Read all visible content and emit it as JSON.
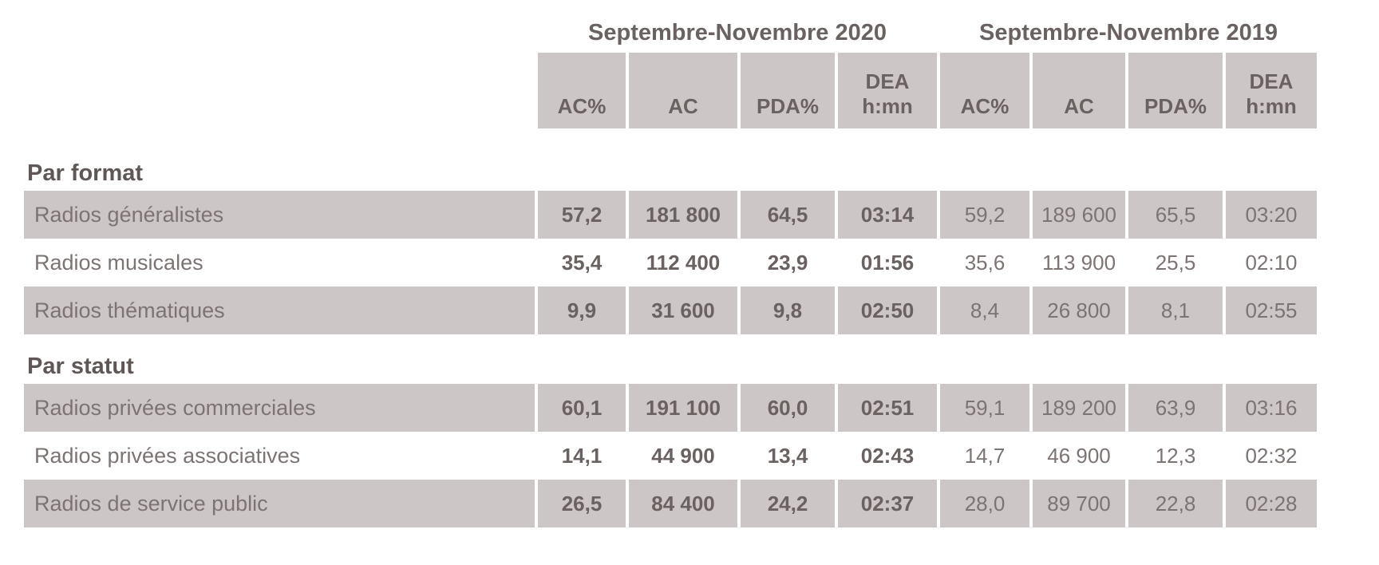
{
  "colors": {
    "row_band": "#cdc6c6",
    "bold_text": "#6a6161",
    "regular_text": "#7c7373",
    "heading_text": "#5f5656",
    "background": "#ffffff"
  },
  "header": {
    "col_labels": [
      "AC%",
      "AC",
      "PDA%"
    ],
    "dea_line1": "DEA",
    "dea_line2": "h:mn"
  },
  "chart_data": {
    "type": "table",
    "column_groups": [
      "Septembre-Novembre 2020",
      "Septembre-Novembre 2019"
    ],
    "columns": [
      "AC%",
      "AC",
      "PDA%",
      "DEA h:mn",
      "AC%",
      "AC",
      "PDA%",
      "DEA h:mn"
    ],
    "sections": [
      {
        "title": "Par format",
        "rows": [
          {
            "label": "Radios généralistes",
            "shaded": true,
            "cells": [
              "57,2",
              "181 800",
              "64,5",
              "03:14",
              "59,2",
              "189 600",
              "65,5",
              "03:20"
            ]
          },
          {
            "label": "Radios musicales",
            "shaded": false,
            "cells": [
              "35,4",
              "112 400",
              "23,9",
              "01:56",
              "35,6",
              "113 900",
              "25,5",
              "02:10"
            ]
          },
          {
            "label": "Radios thématiques",
            "shaded": true,
            "cells": [
              "9,9",
              "31 600",
              "9,8",
              "02:50",
              "8,4",
              "26 800",
              "8,1",
              "02:55"
            ]
          }
        ]
      },
      {
        "title": "Par statut",
        "rows": [
          {
            "label": "Radios privées commerciales",
            "shaded": true,
            "cells": [
              "60,1",
              "191 100",
              "60,0",
              "02:51",
              "59,1",
              "189 200",
              "63,9",
              "03:16"
            ]
          },
          {
            "label": "Radios privées associatives",
            "shaded": false,
            "cells": [
              "14,1",
              "44 900",
              "13,4",
              "02:43",
              "14,7",
              "46 900",
              "12,3",
              "02:32"
            ]
          },
          {
            "label": "Radios de service public",
            "shaded": true,
            "cells": [
              "26,5",
              "84 400",
              "24,2",
              "02:37",
              "28,0",
              "89 700",
              "22,8",
              "02:28"
            ]
          }
        ]
      }
    ]
  }
}
